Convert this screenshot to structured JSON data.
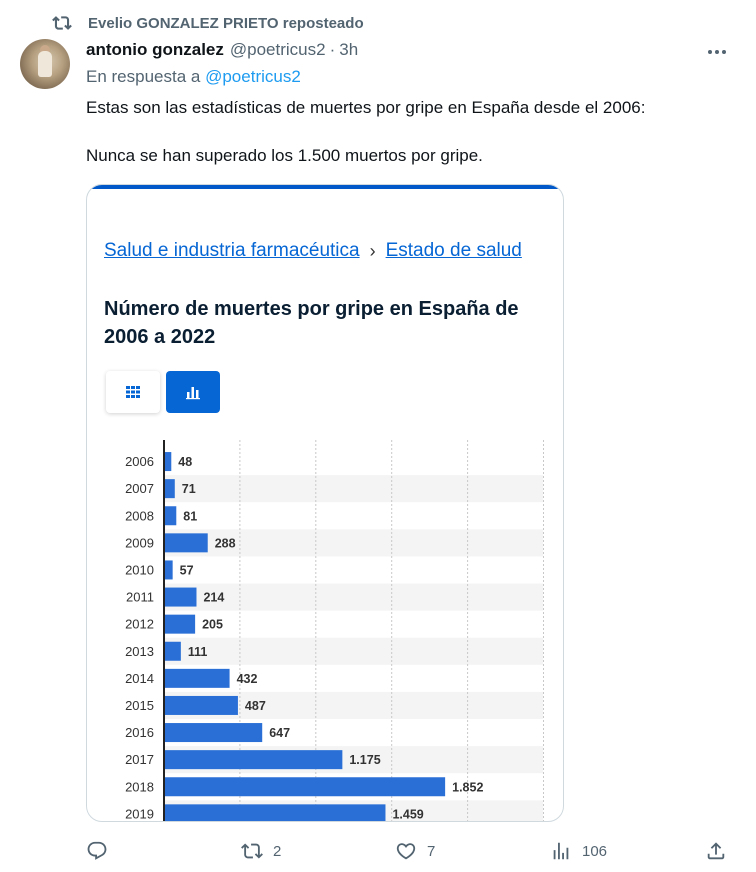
{
  "repost": {
    "text": "Evelio GONZALEZ PRIETO reposteado"
  },
  "author": {
    "name": "antonio gonzalez",
    "handle": "@poetricus2",
    "time": "3h"
  },
  "reply_to": {
    "prefix": "En respuesta a",
    "mention": "@poetricus2"
  },
  "tweet": {
    "line1": "Estas son las estadísticas de muertes por gripe en España desde el 2006:",
    "line2": "Nunca se han superado los 1.500 muertos por gripe."
  },
  "media": {
    "breadcrumb_1": "Salud e industria farmacéutica",
    "breadcrumb_sep": "›",
    "breadcrumb_2": "Estado de salud",
    "title": "Número de muertes por gripe en España de 2006 a 2022",
    "accent_color": "#0666d4",
    "bar_color": "#2a6fd6"
  },
  "chart_data": {
    "type": "bar",
    "orientation": "horizontal",
    "title": "Número de muertes por gripe en España de 2006 a 2022",
    "categories": [
      "2006",
      "2007",
      "2008",
      "2009",
      "2010",
      "2011",
      "2012",
      "2013",
      "2014",
      "2015",
      "2016",
      "2017",
      "2018",
      "2019"
    ],
    "values": [
      48,
      71,
      81,
      288,
      57,
      214,
      205,
      111,
      432,
      487,
      647,
      1175,
      1852,
      1459
    ],
    "labels": [
      "48",
      "71",
      "81",
      "288",
      "57",
      "214",
      "205",
      "111",
      "432",
      "487",
      "647",
      "1.175",
      "1.852",
      "1.459"
    ],
    "xlim": [
      0,
      2500
    ],
    "grid": true
  },
  "actions": {
    "reply_count": "",
    "repost_count": "2",
    "like_count": "7",
    "views_count": "106"
  },
  "icons": [
    "repost-icon",
    "more-icon",
    "table-icon",
    "bar-chart-icon",
    "reply-icon",
    "like-icon",
    "views-icon",
    "share-icon"
  ]
}
